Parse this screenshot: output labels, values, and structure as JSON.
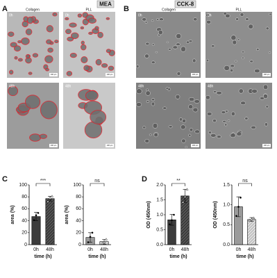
{
  "figure": {
    "panel_labels": [
      "A",
      "B",
      "C",
      "D"
    ],
    "headers": [
      "MEA",
      "CCK-8"
    ],
    "columns": [
      "Collagen",
      "PLL"
    ],
    "times": [
      "0h",
      "48h"
    ],
    "scale_bar": "100 μm"
  },
  "chart_data": [
    {
      "type": "bar",
      "ylabel": "area (%)",
      "xlabel": "time (h)",
      "categories": [
        "0h",
        "48h"
      ],
      "values": [
        47,
        77
      ],
      "errors": [
        7,
        4
      ],
      "points": [
        [
          41,
          49,
          53
        ],
        [
          72,
          78,
          81
        ]
      ],
      "significance": "***",
      "colors": [
        "#3c3c3c",
        "#4a4a4a"
      ],
      "hatch": [
        false,
        true
      ],
      "ylim": [
        0,
        100
      ],
      "yticks": [
        0,
        20,
        40,
        60,
        80,
        100
      ]
    },
    {
      "type": "bar",
      "ylabel": "area (%)",
      "xlabel": "time (h)",
      "categories": [
        "0h",
        "48h"
      ],
      "values": [
        12,
        5
      ],
      "errors": [
        8,
        4
      ],
      "points": [
        [
          4,
          13,
          20
        ],
        [
          2,
          4,
          9
        ]
      ],
      "significance": "ns",
      "colors": [
        "#9a9a9a",
        "#bdbdbd"
      ],
      "hatch": [
        false,
        true
      ],
      "ylim": [
        0,
        100
      ],
      "yticks": [
        0,
        20,
        40,
        60,
        80,
        100
      ]
    },
    {
      "type": "bar",
      "ylabel": "OD (450nm)",
      "xlabel": "time (h)",
      "categories": [
        "0h",
        "48h"
      ],
      "values": [
        0.83,
        1.63
      ],
      "errors": [
        0.18,
        0.22
      ],
      "points": [
        [
          0.68,
          0.82,
          1.0
        ],
        [
          1.42,
          1.6,
          1.85
        ]
      ],
      "significance": "**",
      "colors": [
        "#3c3c3c",
        "#4a4a4a"
      ],
      "hatch": [
        false,
        true
      ],
      "ylim": [
        0,
        2.0
      ],
      "yticks": [
        {
          "value": 0,
          "label": "0.0"
        },
        0.5,
        {
          "value": 1,
          "label": "1.0"
        },
        1.5,
        {
          "value": 2,
          "label": "2.0"
        }
      ]
    },
    {
      "type": "bar",
      "ylabel": "OD (450nm)",
      "xlabel": "time (h)",
      "categories": [
        "0h",
        "48h"
      ],
      "values": [
        0.95,
        0.63
      ],
      "errors": [
        0.25,
        0.05
      ],
      "points": [
        [
          0.72,
          0.95,
          1.18
        ],
        [
          0.6,
          0.63,
          0.67
        ]
      ],
      "significance": "ns",
      "colors": [
        "#9a9a9a",
        "#c8c8c8"
      ],
      "hatch": [
        false,
        true
      ],
      "ylim": [
        0,
        1.5
      ],
      "yticks": [
        {
          "value": 0,
          "label": "0.0"
        },
        0.5,
        {
          "value": 1,
          "label": "1.0"
        },
        1.5
      ]
    }
  ]
}
